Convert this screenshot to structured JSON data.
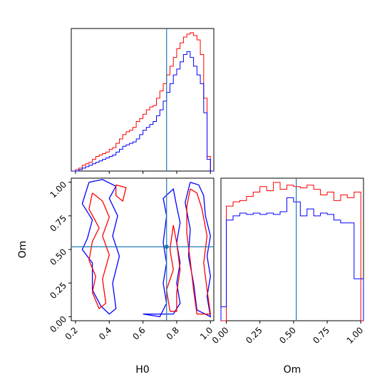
{
  "chart_data": [
    {
      "type": "histogram",
      "panel": "H0 marginal",
      "x_range": [
        0.175,
        1.02
      ],
      "truth": 0.74,
      "y_ticks_shown": false,
      "x_ticks": [
        0.2,
        0.4,
        0.6,
        0.8,
        1.0
      ],
      "bin_edges": [
        0.18,
        0.2,
        0.22,
        0.24,
        0.26,
        0.28,
        0.3,
        0.32,
        0.34,
        0.36,
        0.38,
        0.4,
        0.42,
        0.44,
        0.46,
        0.48,
        0.5,
        0.52,
        0.54,
        0.56,
        0.58,
        0.6,
        0.62,
        0.64,
        0.66,
        0.68,
        0.7,
        0.72,
        0.74,
        0.76,
        0.78,
        0.8,
        0.82,
        0.84,
        0.86,
        0.88,
        0.9,
        0.92,
        0.94,
        0.96,
        0.98,
        1.0,
        1.02
      ],
      "series": [
        {
          "color": "#ff0000",
          "values": [
            0,
            1,
            2,
            4,
            5,
            6,
            8,
            10,
            11,
            12,
            13,
            15,
            16,
            19,
            22,
            25,
            27,
            28,
            30,
            34,
            36,
            39,
            42,
            44,
            45,
            50,
            55,
            60,
            66,
            72,
            78,
            84,
            88,
            92,
            94,
            95,
            93,
            90,
            80,
            50,
            10,
            0
          ]
        },
        {
          "color": "#0000ff",
          "values": [
            0,
            0,
            1,
            2,
            3,
            4,
            5,
            6,
            7,
            8,
            9,
            10,
            11,
            13,
            15,
            17,
            18,
            19,
            20,
            22,
            25,
            28,
            30,
            32,
            34,
            38,
            42,
            48,
            54,
            60,
            66,
            70,
            75,
            80,
            82,
            78,
            72,
            66,
            60,
            40,
            8,
            0
          ]
        }
      ]
    },
    {
      "type": "contour",
      "panel": "H0 vs Om",
      "xlabel": "H0",
      "ylabel": "Om",
      "x_range": [
        0.175,
        1.02
      ],
      "y_range": [
        -0.03,
        1.03
      ],
      "x_ticks": [
        "0.2",
        "0.4",
        "0.6",
        "0.8",
        "1.0"
      ],
      "y_ticks": [
        "0.00",
        "0.25",
        "0.50",
        "0.75",
        "1.00"
      ],
      "truth": {
        "x": 0.74,
        "y": 0.52
      },
      "series": [
        {
          "color": "#0000ff",
          "contours": [
            [
              [
                0.28,
                1.0
              ],
              [
                0.24,
                0.84
              ],
              [
                0.3,
                0.72
              ],
              [
                0.27,
                0.58
              ],
              [
                0.24,
                0.5
              ],
              [
                0.3,
                0.4
              ],
              [
                0.3,
                0.2
              ],
              [
                0.35,
                0.08
              ],
              [
                0.4,
                0.02
              ],
              [
                0.44,
                0.06
              ],
              [
                0.42,
                0.25
              ],
              [
                0.46,
                0.45
              ],
              [
                0.42,
                0.6
              ],
              [
                0.45,
                0.75
              ],
              [
                0.4,
                0.88
              ],
              [
                0.44,
                0.97
              ],
              [
                0.36,
                1.02
              ],
              [
                0.28,
                1.0
              ]
            ],
            [
              [
                0.6,
                0.02
              ],
              [
                0.7,
                0.0
              ],
              [
                0.74,
                0.1
              ],
              [
                0.72,
                0.25
              ],
              [
                0.74,
                0.4
              ],
              [
                0.72,
                0.55
              ],
              [
                0.74,
                0.75
              ],
              [
                0.72,
                0.88
              ],
              [
                0.78,
                0.95
              ],
              [
                0.8,
                0.82
              ],
              [
                0.82,
                0.7
              ],
              [
                0.8,
                0.55
              ],
              [
                0.82,
                0.4
              ],
              [
                0.8,
                0.25
              ],
              [
                0.82,
                0.1
              ],
              [
                0.78,
                0.02
              ],
              [
                0.6,
                0.02
              ]
            ],
            [
              [
                0.88,
                1.0
              ],
              [
                0.93,
                0.98
              ],
              [
                0.96,
                0.9
              ],
              [
                0.97,
                0.75
              ],
              [
                1.0,
                0.6
              ],
              [
                0.98,
                0.45
              ],
              [
                1.0,
                0.3
              ],
              [
                0.98,
                0.15
              ],
              [
                1.0,
                0.0
              ],
              [
                0.92,
                0.05
              ],
              [
                0.9,
                0.25
              ],
              [
                0.87,
                0.45
              ],
              [
                0.88,
                0.65
              ],
              [
                0.85,
                0.85
              ],
              [
                0.88,
                1.0
              ]
            ]
          ]
        },
        {
          "color": "#ff0000",
          "contours": [
            [
              [
                0.3,
                0.92
              ],
              [
                0.28,
                0.8
              ],
              [
                0.34,
                0.66
              ],
              [
                0.3,
                0.56
              ],
              [
                0.28,
                0.42
              ],
              [
                0.32,
                0.3
              ],
              [
                0.3,
                0.18
              ],
              [
                0.34,
                0.06
              ],
              [
                0.38,
                0.1
              ],
              [
                0.36,
                0.28
              ],
              [
                0.4,
                0.46
              ],
              [
                0.36,
                0.6
              ],
              [
                0.4,
                0.74
              ],
              [
                0.36,
                0.86
              ],
              [
                0.3,
                0.92
              ]
            ],
            [
              [
                0.44,
                0.98
              ],
              [
                0.5,
                0.96
              ],
              [
                0.48,
                0.86
              ],
              [
                0.44,
                0.9
              ],
              [
                0.44,
                0.98
              ]
            ],
            [
              [
                0.76,
                0.04
              ],
              [
                0.74,
                0.2
              ],
              [
                0.78,
                0.35
              ],
              [
                0.76,
                0.5
              ],
              [
                0.78,
                0.68
              ],
              [
                0.8,
                0.55
              ],
              [
                0.82,
                0.35
              ],
              [
                0.8,
                0.18
              ],
              [
                0.8,
                0.04
              ],
              [
                0.76,
                0.04
              ]
            ],
            [
              [
                0.88,
                0.95
              ],
              [
                0.92,
                0.92
              ],
              [
                0.95,
                0.8
              ],
              [
                0.98,
                0.6
              ],
              [
                0.96,
                0.4
              ],
              [
                0.98,
                0.2
              ],
              [
                1.0,
                0.02
              ],
              [
                0.92,
                0.02
              ],
              [
                0.9,
                0.2
              ],
              [
                0.88,
                0.42
              ],
              [
                0.86,
                0.62
              ],
              [
                0.86,
                0.82
              ],
              [
                0.88,
                0.95
              ]
            ]
          ]
        }
      ]
    },
    {
      "type": "histogram",
      "panel": "Om marginal",
      "xlabel": "Om",
      "x_range": [
        -0.04,
        1.02
      ],
      "truth": 0.52,
      "y_ticks_shown": false,
      "x_ticks": [
        "0.00",
        "0.25",
        "0.50",
        "0.75",
        "1.00"
      ],
      "bin_edges": [
        -0.04,
        0.0,
        0.05,
        0.1,
        0.15,
        0.2,
        0.25,
        0.3,
        0.35,
        0.4,
        0.45,
        0.5,
        0.55,
        0.6,
        0.65,
        0.7,
        0.75,
        0.8,
        0.85,
        0.9,
        0.95,
        1.0,
        1.02
      ],
      "series": [
        {
          "color": "#ff0000",
          "values": [
            0,
            82,
            85,
            86,
            89,
            92,
            96,
            93,
            99,
            94,
            97,
            96,
            95,
            97,
            94,
            90,
            92,
            86,
            90,
            88,
            92,
            0
          ]
        },
        {
          "color": "#0000ff",
          "values": [
            10,
            72,
            75,
            77,
            76,
            77,
            76,
            77,
            76,
            78,
            88,
            85,
            75,
            80,
            75,
            77,
            76,
            72,
            70,
            70,
            30,
            30
          ]
        }
      ]
    }
  ]
}
